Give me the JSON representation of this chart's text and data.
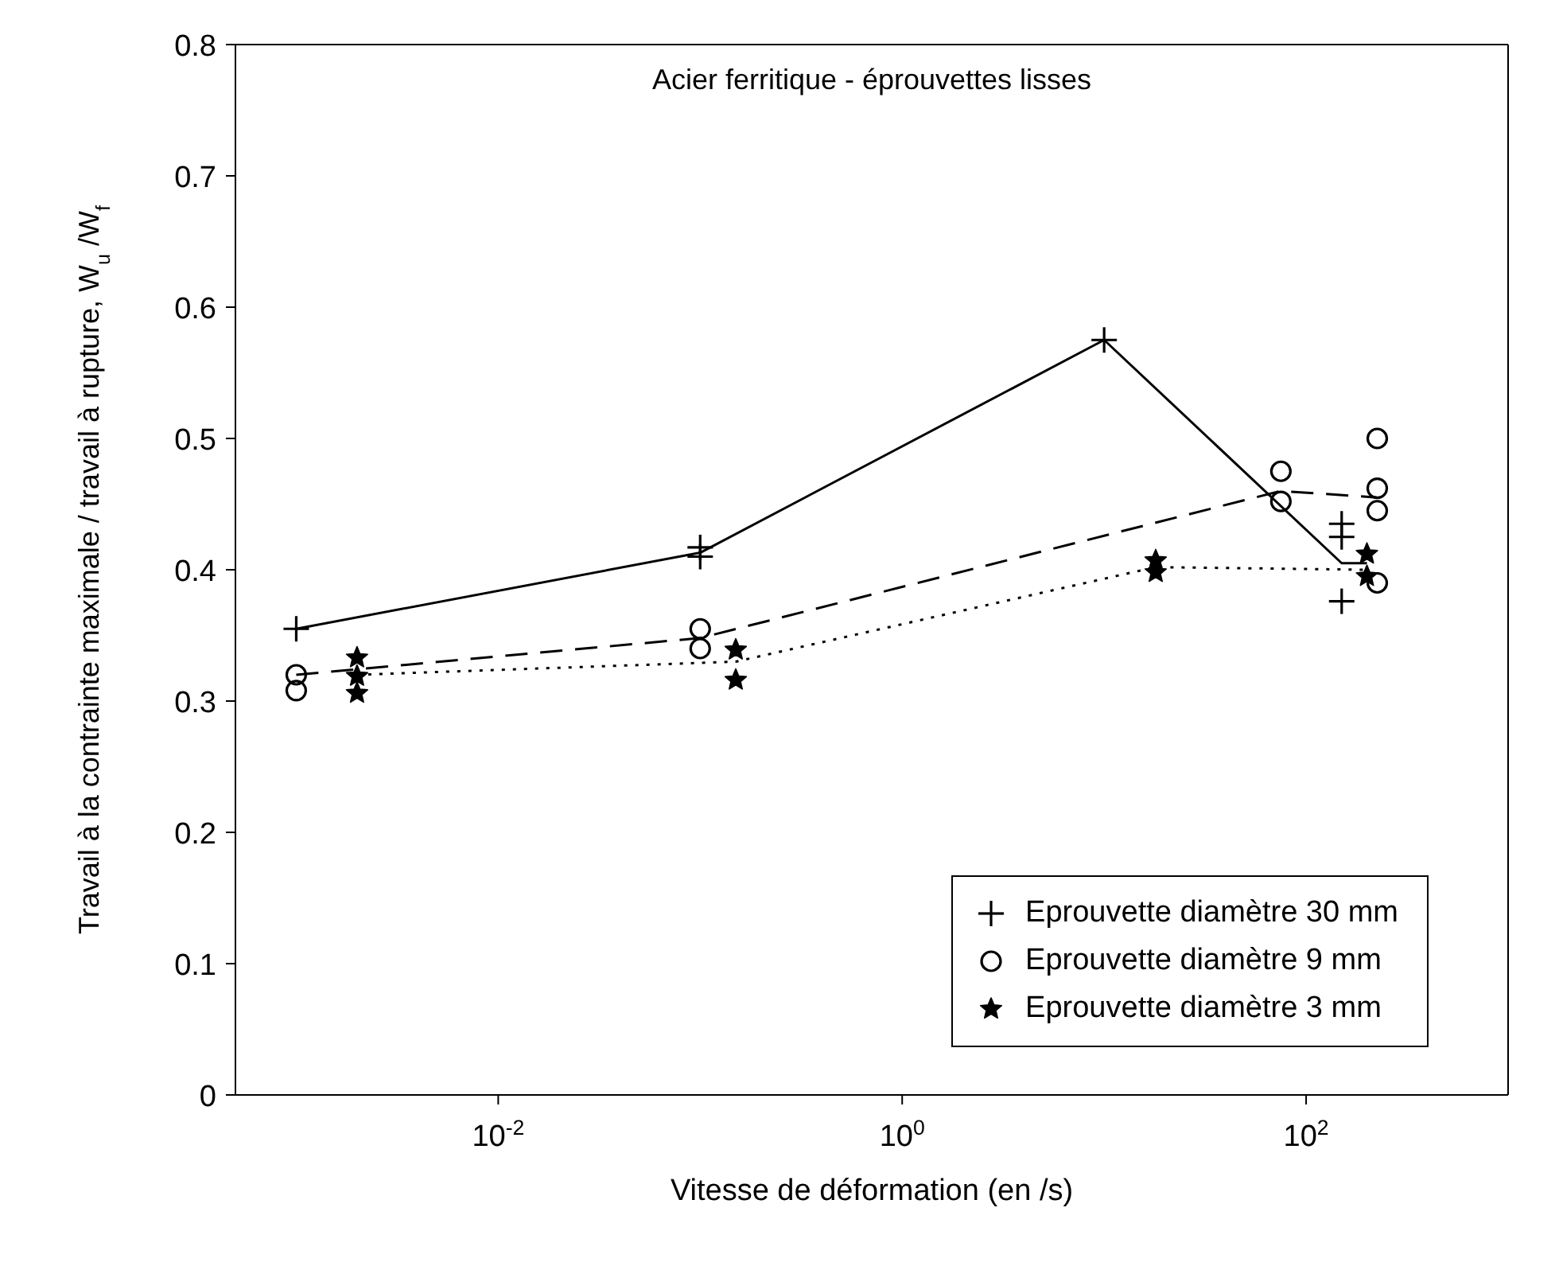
{
  "chart_data": {
    "type": "scatter",
    "title": "Acier ferritique -  éprouvettes lisses",
    "xlabel": "Vitesse de déformation (en /s)",
    "ylabel": "Travail à la contrainte maximale / travail à rupture, W$_{u}$ /W$_{f}$",
    "log": "x",
    "xlim": [
      0.0005,
      1000
    ],
    "xticks": [
      {
        "value": 0.01,
        "label": "10$^{-2}$"
      },
      {
        "value": 1,
        "label": "10$^{0}$"
      },
      {
        "value": 100,
        "label": "10$^{2}$"
      }
    ],
    "ylim": [
      0,
      0.8
    ],
    "yticks": [
      0,
      0.1,
      0.2,
      0.3,
      0.4,
      0.5,
      0.6,
      0.7,
      0.8
    ],
    "grid": false,
    "legend": "bottom right",
    "series": [
      {
        "name": "Eprouvette diamètre 30 mm",
        "marker": "cross",
        "color": "#000000",
        "x": [
          0.001,
          0.1,
          0.1,
          10,
          150,
          150,
          150
        ],
        "values": [
          0.355,
          0.417,
          0.41,
          0.575,
          0.435,
          0.425,
          0.376
        ]
      },
      {
        "name": "Eprouvette diamètre 9 mm",
        "marker": "circle",
        "color": "#000000",
        "x": [
          0.001,
          0.001,
          0.1,
          0.1,
          75,
          75,
          225,
          225,
          225,
          225
        ],
        "values": [
          0.32,
          0.308,
          0.355,
          0.34,
          0.475,
          0.452,
          0.5,
          0.462,
          0.445,
          0.39
        ]
      },
      {
        "name": "Eprouvette diamètre 3 mm",
        "marker": "star",
        "color": "#000000",
        "x": [
          0.002,
          0.002,
          0.002,
          0.15,
          0.15,
          18,
          18,
          200,
          200
        ],
        "values": [
          0.333,
          0.319,
          0.306,
          0.339,
          0.316,
          0.407,
          0.398,
          0.412,
          0.395
        ]
      },
      {
        "type": "line",
        "line_style": "solid",
        "color": "#000000",
        "x": [
          0.001,
          0.1,
          10,
          150,
          200
        ],
        "values": [
          0.355,
          0.413,
          0.575,
          0.405,
          0.405
        ]
      },
      {
        "type": "line",
        "line_style": "dashed",
        "color": "#000000",
        "x": [
          0.001,
          0.1,
          75,
          225
        ],
        "values": [
          0.32,
          0.348,
          0.46,
          0.455
        ]
      },
      {
        "type": "line",
        "line_style": "dotted",
        "color": "#000000",
        "x": [
          0.002,
          0.15,
          18,
          200
        ],
        "values": [
          0.32,
          0.33,
          0.402,
          0.4
        ]
      }
    ]
  }
}
